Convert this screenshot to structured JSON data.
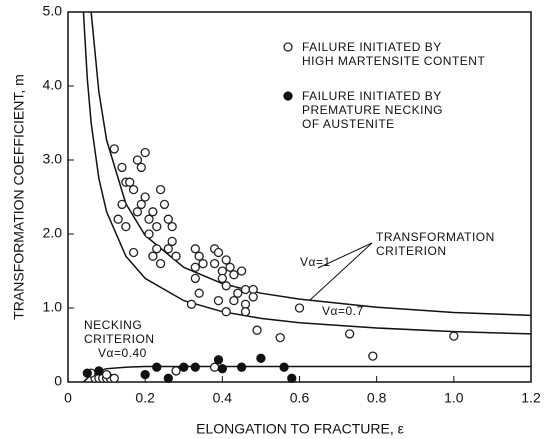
{
  "chart_data": {
    "type": "scatter",
    "xlabel": "ELONGATION TO FRACTURE, ε",
    "ylabel": "TRANSFORMATION COEFFICIENT, m",
    "xlim": [
      0,
      1.2
    ],
    "ylim": [
      0,
      5
    ],
    "xticks": [
      0,
      0.2,
      0.4,
      0.6,
      0.8,
      {
        "value": 1,
        "label": "1.0"
      },
      1.2
    ],
    "yticks": [
      0,
      {
        "value": 1,
        "label": "1.0"
      },
      {
        "value": 2,
        "label": "2.0"
      },
      {
        "value": 3,
        "label": "3.0"
      },
      {
        "value": 4,
        "label": "4.0"
      },
      {
        "value": 5,
        "label": "5.0"
      }
    ],
    "series": [
      {
        "name": "FAILURE INITIATED BY\nHIGH MARTENSITE CONTENT",
        "marker": "open",
        "color": "#222222",
        "x": [
          0.12,
          0.14,
          0.15,
          0.14,
          0.13,
          0.15,
          0.16,
          0.17,
          0.18,
          0.19,
          0.2,
          0.18,
          0.19,
          0.2,
          0.21,
          0.21,
          0.22,
          0.23,
          0.23,
          0.24,
          0.25,
          0.26,
          0.27,
          0.26,
          0.27,
          0.28,
          0.22,
          0.24,
          0.17,
          0.33,
          0.33,
          0.34,
          0.35,
          0.33,
          0.34,
          0.32,
          0.38,
          0.39,
          0.38,
          0.4,
          0.41,
          0.42,
          0.4,
          0.41,
          0.39,
          0.43,
          0.45,
          0.44,
          0.46,
          0.48,
          0.48,
          0.46,
          0.46,
          0.43,
          0.41,
          0.49,
          0.55,
          0.6,
          0.73,
          0.79,
          1.0,
          0.07,
          0.08,
          0.09,
          0.1,
          0.11,
          0.12,
          0.06,
          0.1,
          0.28,
          0.38
        ],
        "values": [
          3.15,
          2.9,
          2.7,
          2.4,
          2.2,
          2.1,
          2.7,
          2.6,
          3.0,
          2.9,
          3.1,
          2.3,
          2.4,
          2.5,
          2.2,
          2.0,
          2.3,
          2.1,
          1.8,
          2.6,
          2.4,
          2.2,
          2.1,
          1.8,
          1.9,
          1.7,
          1.7,
          1.6,
          1.75,
          1.8,
          1.55,
          1.7,
          1.6,
          1.4,
          1.2,
          1.05,
          1.8,
          1.75,
          1.6,
          1.5,
          1.65,
          1.55,
          1.4,
          1.3,
          1.1,
          1.45,
          1.5,
          1.2,
          1.25,
          1.25,
          1.15,
          1.05,
          0.95,
          1.1,
          0.95,
          0.7,
          0.6,
          1.0,
          0.65,
          0.35,
          0.62,
          0.05,
          0.05,
          0.05,
          0.05,
          0.05,
          0.05,
          0.12,
          0.1,
          0.15,
          0.2
        ]
      },
      {
        "name": "FAILURE INITIATED BY\nPREMATURE NECKING\nOF AUSTENITE",
        "marker": "filled",
        "color": "#111111",
        "x": [
          0.05,
          0.08,
          0.2,
          0.23,
          0.26,
          0.3,
          0.33,
          0.39,
          0.4,
          0.45,
          0.5,
          0.56,
          0.58
        ],
        "values": [
          0.12,
          0.15,
          0.1,
          0.2,
          0.05,
          0.2,
          0.2,
          0.3,
          0.18,
          0.2,
          0.32,
          0.2,
          0.05
        ]
      }
    ],
    "curves": [
      {
        "x": [
          0.06,
          0.08,
          0.1,
          0.15,
          0.2,
          0.3,
          0.4,
          0.5,
          0.6,
          0.8,
          1.0,
          1.2
        ],
        "values": [
          5.0,
          3.92,
          3.27,
          2.41,
          1.98,
          1.55,
          1.33,
          1.2,
          1.12,
          1.01,
          0.94,
          0.9
        ]
      },
      {
        "x": [
          0.04,
          0.05,
          0.06,
          0.08,
          0.1,
          0.15,
          0.2,
          0.3,
          0.4,
          0.5,
          0.6,
          0.8,
          1.0,
          1.2
        ],
        "values": [
          5.0,
          4.1,
          3.5,
          2.75,
          2.3,
          1.7,
          1.4,
          1.1,
          0.95,
          0.86,
          0.8,
          0.73,
          0.68,
          0.65
        ]
      },
      {
        "x": [
          0.04,
          0.06,
          0.08,
          0.1,
          0.15,
          0.2,
          0.4,
          0.6,
          0.8,
          1.0,
          1.2
        ],
        "values": [
          0,
          0.1,
          0.15,
          0.18,
          0.2,
          0.21,
          0.21,
          0.21,
          0.21,
          0.21,
          0.21
        ]
      }
    ],
    "annotations": [
      "TRANSFORMATION\nCRITERION",
      "Vα=1",
      "Vα=0.7",
      "NECKING\nCRITERION",
      "Vα=0.40"
    ]
  }
}
